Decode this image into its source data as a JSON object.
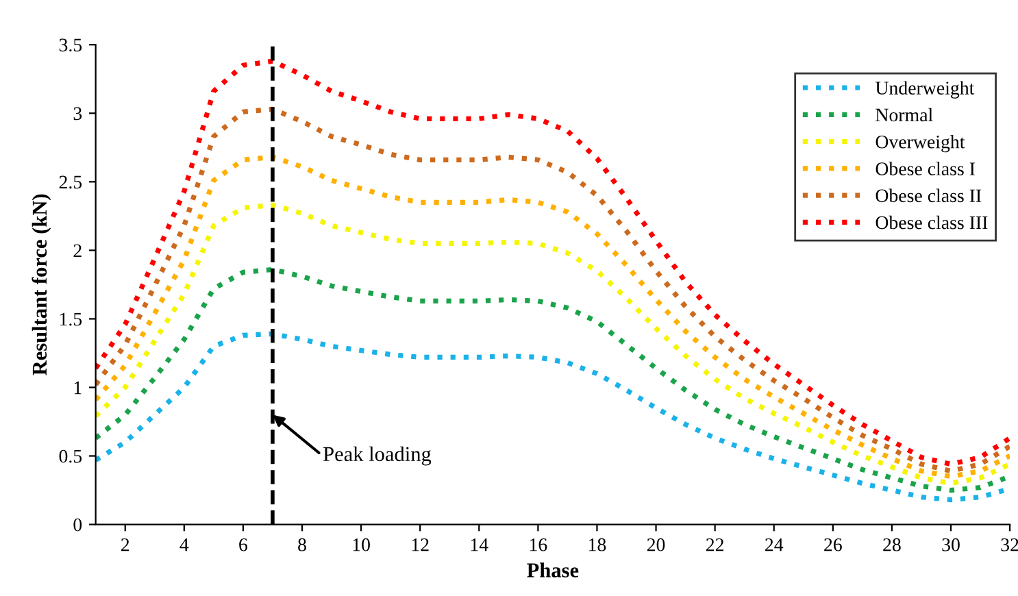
{
  "chart_data": {
    "type": "line",
    "xlabel": "Phase",
    "ylabel": "Resultant force (kN)",
    "x": [
      1,
      2,
      3,
      4,
      5,
      6,
      7,
      8,
      9,
      10,
      11,
      12,
      13,
      14,
      15,
      16,
      17,
      18,
      19,
      20,
      21,
      22,
      23,
      24,
      25,
      26,
      27,
      28,
      29,
      30,
      31,
      32
    ],
    "series": [
      {
        "name": "Underweight",
        "color": "#1ab2e8",
        "values": [
          0.47,
          0.6,
          0.8,
          1.0,
          1.3,
          1.38,
          1.39,
          1.35,
          1.3,
          1.27,
          1.24,
          1.22,
          1.22,
          1.22,
          1.23,
          1.22,
          1.18,
          1.1,
          0.98,
          0.85,
          0.73,
          0.63,
          0.55,
          0.48,
          0.42,
          0.36,
          0.3,
          0.25,
          0.2,
          0.18,
          0.2,
          0.26
        ]
      },
      {
        "name": "Normal",
        "color": "#1aa34a",
        "values": [
          0.63,
          0.8,
          1.07,
          1.35,
          1.72,
          1.84,
          1.86,
          1.81,
          1.74,
          1.7,
          1.66,
          1.63,
          1.63,
          1.63,
          1.64,
          1.63,
          1.58,
          1.48,
          1.31,
          1.14,
          0.98,
          0.84,
          0.73,
          0.64,
          0.56,
          0.48,
          0.4,
          0.34,
          0.28,
          0.25,
          0.27,
          0.35
        ]
      },
      {
        "name": "Overweight",
        "color": "#f5f500",
        "values": [
          0.79,
          1.0,
          1.34,
          1.68,
          2.18,
          2.31,
          2.33,
          2.27,
          2.18,
          2.13,
          2.08,
          2.05,
          2.05,
          2.05,
          2.06,
          2.05,
          1.98,
          1.85,
          1.65,
          1.43,
          1.23,
          1.06,
          0.92,
          0.81,
          0.71,
          0.6,
          0.5,
          0.42,
          0.34,
          0.3,
          0.34,
          0.44
        ]
      },
      {
        "name": "Obese class I",
        "color": "#ffb000",
        "values": [
          0.91,
          1.16,
          1.54,
          1.93,
          2.51,
          2.66,
          2.68,
          2.61,
          2.51,
          2.45,
          2.39,
          2.35,
          2.35,
          2.35,
          2.37,
          2.35,
          2.28,
          2.12,
          1.89,
          1.64,
          1.41,
          1.22,
          1.06,
          0.93,
          0.81,
          0.69,
          0.58,
          0.48,
          0.39,
          0.35,
          0.39,
          0.5
        ]
      },
      {
        "name": "Obese class II",
        "color": "#cc6a1e",
        "values": [
          1.02,
          1.31,
          1.74,
          2.18,
          2.83,
          3.01,
          3.03,
          2.94,
          2.83,
          2.77,
          2.7,
          2.66,
          2.66,
          2.66,
          2.68,
          2.66,
          2.57,
          2.4,
          2.14,
          1.85,
          1.59,
          1.37,
          1.2,
          1.05,
          0.92,
          0.78,
          0.65,
          0.55,
          0.44,
          0.39,
          0.44,
          0.57
        ]
      },
      {
        "name": "Obese class III",
        "color": "#ff0000",
        "values": [
          1.14,
          1.46,
          1.94,
          2.43,
          3.16,
          3.35,
          3.38,
          3.28,
          3.16,
          3.09,
          3.01,
          2.96,
          2.96,
          2.96,
          2.99,
          2.96,
          2.87,
          2.67,
          2.38,
          2.07,
          1.77,
          1.53,
          1.34,
          1.17,
          1.02,
          0.87,
          0.73,
          0.61,
          0.49,
          0.44,
          0.49,
          0.63
        ]
      }
    ],
    "xlim": [
      1,
      32
    ],
    "xticks": [
      2,
      4,
      6,
      8,
      10,
      12,
      14,
      16,
      18,
      20,
      22,
      24,
      26,
      28,
      30,
      32
    ],
    "ylim": [
      0,
      3.5
    ],
    "yticks": [
      0,
      0.5,
      1,
      1.5,
      2,
      2.5,
      3,
      3.5
    ],
    "ref_lines": [
      {
        "axis": "x",
        "value": 7,
        "label": null,
        "color": "#000000",
        "line_style": "dashed"
      }
    ],
    "annotations": [
      {
        "text": "Peak loading",
        "x": 7,
        "y": 0.8
      }
    ],
    "line_style": "dotted",
    "marker": "none",
    "grid": false,
    "legend": "top right"
  }
}
